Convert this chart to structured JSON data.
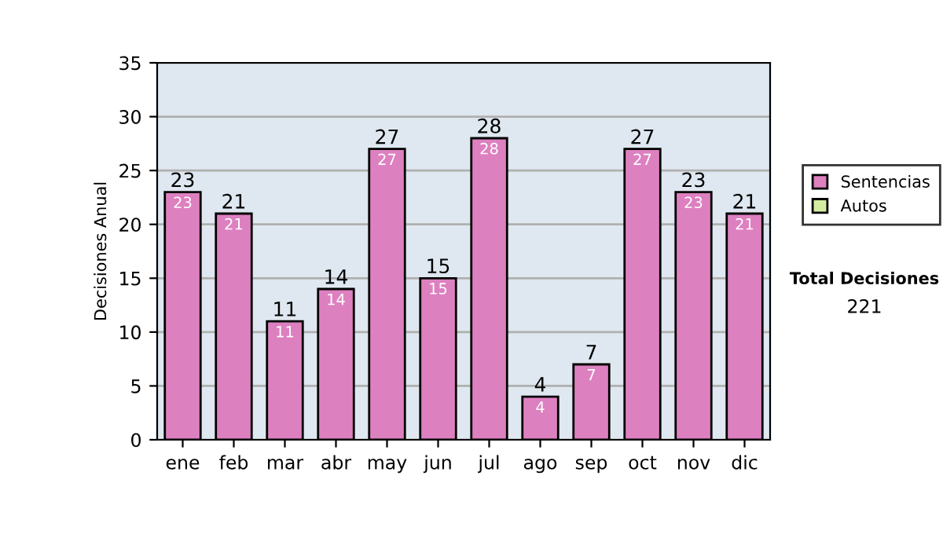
{
  "chart_data": {
    "type": "bar",
    "ylabel": "Decisiones Anual",
    "categories": [
      "ene",
      "feb",
      "mar",
      "abr",
      "may",
      "jun",
      "jul",
      "ago",
      "sep",
      "oct",
      "nov",
      "dic"
    ],
    "series": [
      {
        "name": "Sentencias",
        "color": "#dd80c0",
        "values": [
          23,
          21,
          11,
          14,
          27,
          15,
          28,
          4,
          7,
          27,
          23,
          21
        ],
        "value_labels": [
          "23",
          "21",
          "11",
          "14",
          "27",
          "15",
          "28",
          "4",
          "7",
          "27",
          "23",
          "21"
        ]
      },
      {
        "name": "Autos",
        "color": "#d4eca0",
        "values": [
          0,
          0,
          0,
          0,
          0,
          0,
          0,
          0,
          0,
          0,
          0,
          0
        ]
      }
    ],
    "stacked": true,
    "totals": [
      "23",
      "21",
      "11",
      "14",
      "27",
      "15",
      "28",
      "4",
      "7",
      "27",
      "23",
      "21"
    ],
    "ylim": [
      0,
      35
    ],
    "yticks": [
      0,
      5,
      10,
      15,
      20,
      25,
      30,
      35
    ],
    "grid": "y",
    "legend": "right",
    "annotations": [
      "Total Decisiones",
      "221"
    ]
  }
}
